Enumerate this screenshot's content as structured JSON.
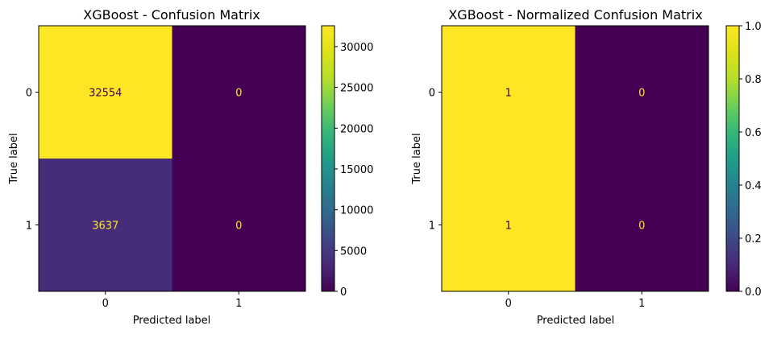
{
  "chart_data": [
    {
      "type": "heatmap",
      "title": "XGBoost - Confusion Matrix",
      "xlabel": "Predicted label",
      "ylabel": "True label",
      "x_categories": [
        "0",
        "1"
      ],
      "y_categories": [
        "0",
        "1"
      ],
      "values": [
        [
          32554,
          0
        ],
        [
          3637,
          0
        ]
      ],
      "cell_labels": [
        [
          "32554",
          "0"
        ],
        [
          "3637",
          "0"
        ]
      ],
      "colormap": "viridis",
      "colorbar": {
        "range": [
          0,
          32554
        ],
        "ticks": [
          0,
          5000,
          10000,
          15000,
          20000,
          25000,
          30000
        ],
        "tick_labels": [
          "0",
          "5000",
          "10000",
          "15000",
          "20000",
          "25000",
          "30000"
        ]
      },
      "grid": false
    },
    {
      "type": "heatmap",
      "title": "XGBoost - Normalized Confusion Matrix",
      "xlabel": "Predicted label",
      "ylabel": "True label",
      "x_categories": [
        "0",
        "1"
      ],
      "y_categories": [
        "0",
        "1"
      ],
      "values": [
        [
          1,
          0
        ],
        [
          1,
          0
        ]
      ],
      "cell_labels": [
        [
          "1",
          "0"
        ],
        [
          "1",
          "0"
        ]
      ],
      "colormap": "viridis",
      "colorbar": {
        "range": [
          0,
          1
        ],
        "ticks": [
          0,
          0.2,
          0.4,
          0.6,
          0.8,
          1.0
        ],
        "tick_labels": [
          "0.0",
          "0.2",
          "0.4",
          "0.6",
          "0.8",
          "1.0"
        ]
      },
      "grid": false
    }
  ],
  "colors": {
    "viridis_low": "#440154",
    "viridis_high": "#fde725",
    "text_on_dark": "#fde725",
    "text_on_light": "#440154"
  }
}
